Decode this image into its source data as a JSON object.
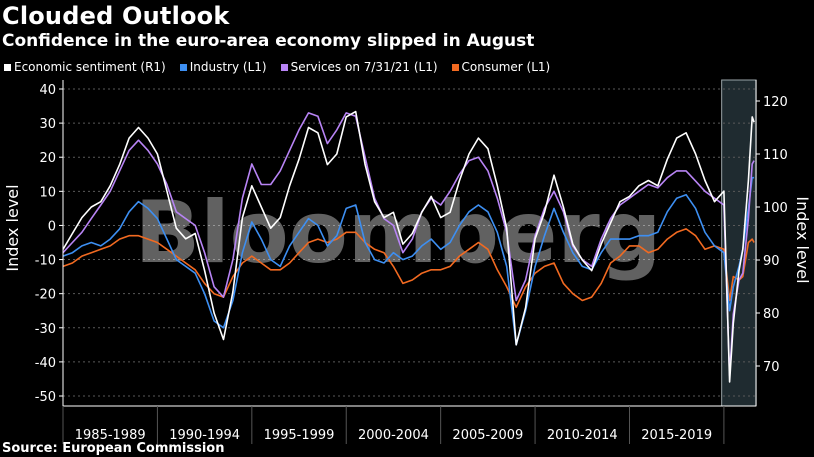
{
  "header": {
    "title": "Clouded Outlook",
    "subtitle": "Confidence in the euro-area economy slipped in August"
  },
  "source": "Source: European Commission",
  "watermark": "Bloomberg",
  "colors": {
    "background": "#000000",
    "sentiment": "#ffffff",
    "industry": "#3d8ff2",
    "services": "#b884f5",
    "consumer": "#f26a21",
    "highlight": "#1f2b30"
  },
  "chart_data": {
    "type": "line",
    "title": "Clouded Outlook",
    "subtitle": "Confidence in the euro-area economy slipped in August",
    "ylabel_left": "Index level",
    "ylabel_right": "Index level",
    "ylim_left": [
      -50,
      40
    ],
    "yticks_left": [
      "40",
      "30",
      "20",
      "10",
      "0",
      "-10",
      "-20",
      "-30",
      "-40",
      "-50"
    ],
    "ylim_right": [
      65,
      125
    ],
    "yticks_right": [
      "120",
      "110",
      "100",
      "90",
      "80",
      "70"
    ],
    "xlim": [
      1985.0,
      2021.7
    ],
    "x_labels": [
      "1985-1989",
      "1990-1994",
      "1995-1999",
      "2000-2004",
      "2005-2009",
      "2010-2014",
      "2015-2019"
    ],
    "grid": "horizontal dashed",
    "legend_position": "top",
    "highlight_range": [
      2020.2,
      2021.6
    ],
    "series": [
      {
        "name": "Economic sentiment (R1)",
        "axis": "right",
        "x": [
          1985.0,
          1985.5,
          1986.0,
          1986.5,
          1987.0,
          1987.5,
          1988.0,
          1988.5,
          1989.0,
          1989.5,
          1990.0,
          1990.5,
          1991.0,
          1991.5,
          1992.0,
          1992.5,
          1993.0,
          1993.5,
          1994.0,
          1994.5,
          1995.0,
          1995.5,
          1996.0,
          1996.5,
          1997.0,
          1997.5,
          1998.0,
          1998.5,
          1999.0,
          1999.5,
          2000.0,
          2000.5,
          2001.0,
          2001.5,
          2002.0,
          2002.5,
          2003.0,
          2003.5,
          2004.0,
          2004.5,
          2005.0,
          2005.5,
          2006.0,
          2006.5,
          2007.0,
          2007.5,
          2008.0,
          2008.5,
          2009.0,
          2009.5,
          2010.0,
          2010.5,
          2011.0,
          2011.5,
          2012.0,
          2012.5,
          2013.0,
          2013.5,
          2014.0,
          2014.5,
          2015.0,
          2015.5,
          2016.0,
          2016.5,
          2017.0,
          2017.5,
          2018.0,
          2018.5,
          2019.0,
          2019.5,
          2020.0,
          2020.3,
          2020.5,
          2020.8,
          2021.0,
          2021.3,
          2021.5,
          2021.6
        ],
        "values": [
          92,
          95,
          98,
          100,
          101,
          104,
          108,
          113,
          115,
          113,
          110,
          103,
          96,
          94,
          95,
          88,
          80,
          75,
          84,
          98,
          104,
          100,
          96,
          98,
          104,
          109,
          115,
          114,
          108,
          110,
          117,
          118,
          108,
          101,
          98,
          99,
          93,
          95,
          99,
          102,
          98,
          99,
          105,
          110,
          113,
          111,
          104,
          96,
          74,
          81,
          94,
          99,
          106,
          100,
          93,
          90,
          88,
          93,
          97,
          101,
          102,
          104,
          105,
          104,
          109,
          113,
          114,
          110,
          105,
          101,
          103,
          67,
          78,
          88,
          92,
          105,
          117,
          116
        ]
      },
      {
        "name": "Industry (L1)",
        "axis": "left",
        "x": [
          1985.0,
          1985.5,
          1986.0,
          1986.5,
          1987.0,
          1987.5,
          1988.0,
          1988.5,
          1989.0,
          1989.5,
          1990.0,
          1990.5,
          1991.0,
          1991.5,
          1992.0,
          1992.5,
          1993.0,
          1993.5,
          1994.0,
          1994.5,
          1995.0,
          1995.5,
          1996.0,
          1996.5,
          1997.0,
          1997.5,
          1998.0,
          1998.5,
          1999.0,
          1999.5,
          2000.0,
          2000.5,
          2001.0,
          2001.5,
          2002.0,
          2002.5,
          2003.0,
          2003.5,
          2004.0,
          2004.5,
          2005.0,
          2005.5,
          2006.0,
          2006.5,
          2007.0,
          2007.5,
          2008.0,
          2008.5,
          2009.0,
          2009.5,
          2010.0,
          2010.5,
          2011.0,
          2011.5,
          2012.0,
          2012.5,
          2013.0,
          2013.5,
          2014.0,
          2014.5,
          2015.0,
          2015.5,
          2016.0,
          2016.5,
          2017.0,
          2017.5,
          2018.0,
          2018.5,
          2019.0,
          2019.5,
          2020.0,
          2020.3,
          2020.5,
          2020.8,
          2021.0,
          2021.3,
          2021.5,
          2021.6
        ],
        "values": [
          -9,
          -8,
          -6,
          -5,
          -6,
          -4,
          -1,
          4,
          7,
          5,
          2,
          -4,
          -10,
          -12,
          -14,
          -20,
          -28,
          -30,
          -22,
          -8,
          1,
          -4,
          -10,
          -12,
          -6,
          -2,
          2,
          0,
          -6,
          -3,
          5,
          6,
          -5,
          -10,
          -11,
          -8,
          -10,
          -9,
          -6,
          -4,
          -7,
          -5,
          0,
          4,
          6,
          4,
          -2,
          -12,
          -35,
          -25,
          -12,
          -3,
          5,
          -2,
          -8,
          -12,
          -13,
          -8,
          -4,
          -4,
          -4,
          -3,
          -3,
          -2,
          4,
          8,
          9,
          5,
          -2,
          -6,
          -8,
          -25,
          -18,
          -12,
          -7,
          5,
          14,
          14
        ]
      },
      {
        "name": "Services on 7/31/21 (L1)",
        "axis": "left",
        "x": [
          1985.0,
          1985.5,
          1986.0,
          1986.5,
          1987.0,
          1987.5,
          1988.0,
          1988.5,
          1989.0,
          1989.5,
          1990.0,
          1990.5,
          1991.0,
          1991.5,
          1992.0,
          1992.5,
          1993.0,
          1993.5,
          1994.0,
          1994.5,
          1995.0,
          1995.5,
          1996.0,
          1996.5,
          1997.0,
          1997.5,
          1998.0,
          1998.5,
          1999.0,
          1999.5,
          2000.0,
          2000.5,
          2001.0,
          2001.5,
          2002.0,
          2002.5,
          2003.0,
          2003.5,
          2004.0,
          2004.5,
          2005.0,
          2005.5,
          2006.0,
          2006.5,
          2007.0,
          2007.5,
          2008.0,
          2008.5,
          2009.0,
          2009.5,
          2010.0,
          2010.5,
          2011.0,
          2011.5,
          2012.0,
          2012.5,
          2013.0,
          2013.5,
          2014.0,
          2014.5,
          2015.0,
          2015.5,
          2016.0,
          2016.5,
          2017.0,
          2017.5,
          2018.0,
          2018.5,
          2019.0,
          2019.5,
          2020.0,
          2020.3,
          2020.5,
          2020.8,
          2021.0,
          2021.3,
          2021.5,
          2021.6
        ],
        "values": [
          -8,
          -5,
          -2,
          2,
          6,
          10,
          16,
          22,
          25,
          22,
          18,
          12,
          4,
          2,
          0,
          -8,
          -18,
          -21,
          -10,
          8,
          18,
          12,
          12,
          16,
          22,
          28,
          33,
          32,
          24,
          28,
          33,
          32,
          20,
          8,
          2,
          0,
          -8,
          -4,
          4,
          8,
          6,
          10,
          15,
          19,
          20,
          16,
          8,
          -2,
          -22,
          -16,
          -3,
          5,
          10,
          4,
          -6,
          -10,
          -12,
          -4,
          2,
          6,
          8,
          10,
          12,
          11,
          14,
          16,
          16,
          13,
          10,
          8,
          6,
          -44,
          -26,
          -16,
          -14,
          2,
          18,
          19
        ]
      },
      {
        "name": "Consumer (L1)",
        "axis": "left",
        "x": [
          1985.0,
          1985.5,
          1986.0,
          1986.5,
          1987.0,
          1987.5,
          1988.0,
          1988.5,
          1989.0,
          1989.5,
          1990.0,
          1990.5,
          1991.0,
          1991.5,
          1992.0,
          1992.5,
          1993.0,
          1993.5,
          1994.0,
          1994.5,
          1995.0,
          1995.5,
          1996.0,
          1996.5,
          1997.0,
          1997.5,
          1998.0,
          1998.5,
          1999.0,
          1999.5,
          2000.0,
          2000.5,
          2001.0,
          2001.5,
          2002.0,
          2002.5,
          2003.0,
          2003.5,
          2004.0,
          2004.5,
          2005.0,
          2005.5,
          2006.0,
          2006.5,
          2007.0,
          2007.5,
          2008.0,
          2008.5,
          2009.0,
          2009.5,
          2010.0,
          2010.5,
          2011.0,
          2011.5,
          2012.0,
          2012.5,
          2013.0,
          2013.5,
          2014.0,
          2014.5,
          2015.0,
          2015.5,
          2016.0,
          2016.5,
          2017.0,
          2017.5,
          2018.0,
          2018.5,
          2019.0,
          2019.5,
          2020.0,
          2020.3,
          2020.5,
          2020.8,
          2021.0,
          2021.3,
          2021.5,
          2021.6
        ],
        "values": [
          -12,
          -11,
          -9,
          -8,
          -7,
          -6,
          -4,
          -3,
          -3,
          -4,
          -5,
          -7,
          -9,
          -11,
          -13,
          -17,
          -20,
          -21,
          -15,
          -11,
          -9,
          -11,
          -13,
          -13,
          -11,
          -8,
          -5,
          -4,
          -5,
          -4,
          -2,
          -2,
          -5,
          -7,
          -8,
          -12,
          -17,
          -16,
          -14,
          -13,
          -13,
          -12,
          -9,
          -7,
          -5,
          -7,
          -13,
          -18,
          -24,
          -18,
          -14,
          -12,
          -11,
          -17,
          -20,
          -22,
          -21,
          -17,
          -11,
          -9,
          -6,
          -6,
          -8,
          -7,
          -4,
          -2,
          -1,
          -3,
          -7,
          -6,
          -7,
          -22,
          -15,
          -16,
          -15,
          -5,
          -4,
          -5
        ]
      }
    ]
  }
}
